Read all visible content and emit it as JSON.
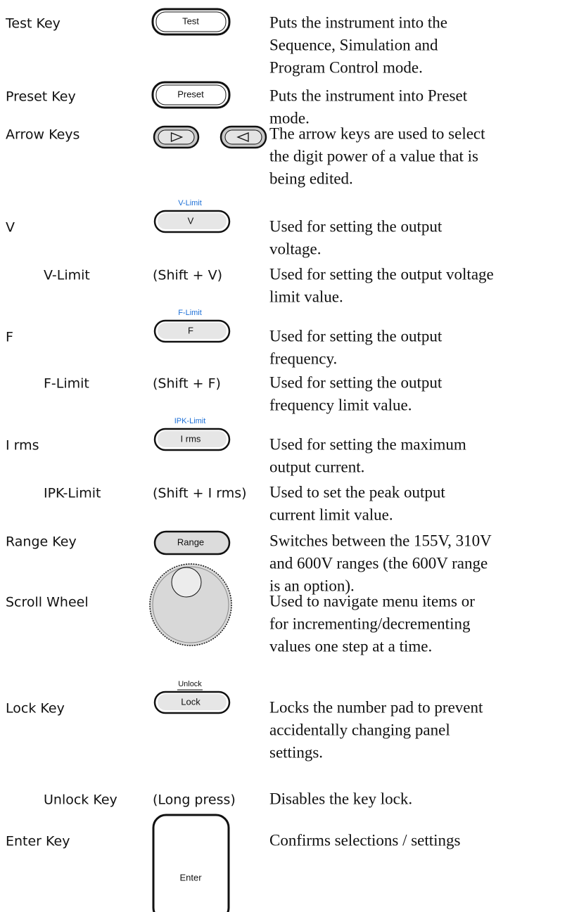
{
  "rows": [
    {
      "label": "Test Key",
      "key": "Test",
      "description": [
        "Puts the instrument into the",
        "Sequence, Simulation and",
        "Program Control mode."
      ]
    },
    {
      "label": "Preset Key",
      "key": "Preset",
      "description": [
        "Puts the instrument into Preset",
        "mode."
      ]
    },
    {
      "label": "Arrow Keys",
      "description": [
        "The arrow keys are used to select",
        "the digit power of a value that is",
        "being edited."
      ]
    },
    {
      "label": "V",
      "key": "V",
      "key_caption": "V-Limit",
      "description": [
        "Used for setting the output",
        "voltage."
      ]
    },
    {
      "label": "V-Limit",
      "key": "(Shift + V)",
      "description": [
        "Used for setting the output voltage",
        "limit value."
      ]
    },
    {
      "label": "F",
      "key": "F",
      "key_caption": "F-Limit",
      "description": [
        "Used for setting the output",
        "frequency."
      ]
    },
    {
      "label": "F-Limit",
      "key": "(Shift + F)",
      "description": [
        "Used for setting the output",
        "frequency limit value."
      ]
    },
    {
      "label": "I rms",
      "key": "I rms",
      "key_caption": "IPK-Limit",
      "description": [
        "Used for setting the maximum",
        "output current."
      ]
    },
    {
      "label": "IPK-Limit",
      "key": "(Shift + I rms)",
      "description": [
        "Used to set the peak output",
        "current limit value."
      ]
    },
    {
      "label": "Range Key",
      "key": "Range",
      "description": [
        "Switches between the 155V, 310V",
        "and 600V ranges (the 600V range",
        "is an option)."
      ]
    },
    {
      "label": "Scroll Wheel",
      "description": [
        "Used to navigate menu items or",
        "for incrementing/decrementing",
        "values one step at a time."
      ]
    },
    {
      "label": "Lock Key",
      "key": "Lock",
      "key_caption": "Unlock",
      "description": [
        "Locks the number pad to prevent",
        "accidentally changing panel",
        "settings."
      ]
    },
    {
      "label": "Unlock Key",
      "key": "(Long press)",
      "description": [
        "Disables the key lock."
      ]
    },
    {
      "label": "Enter Key",
      "key": "Enter",
      "description": [
        "Confirms selections / settings"
      ]
    }
  ]
}
